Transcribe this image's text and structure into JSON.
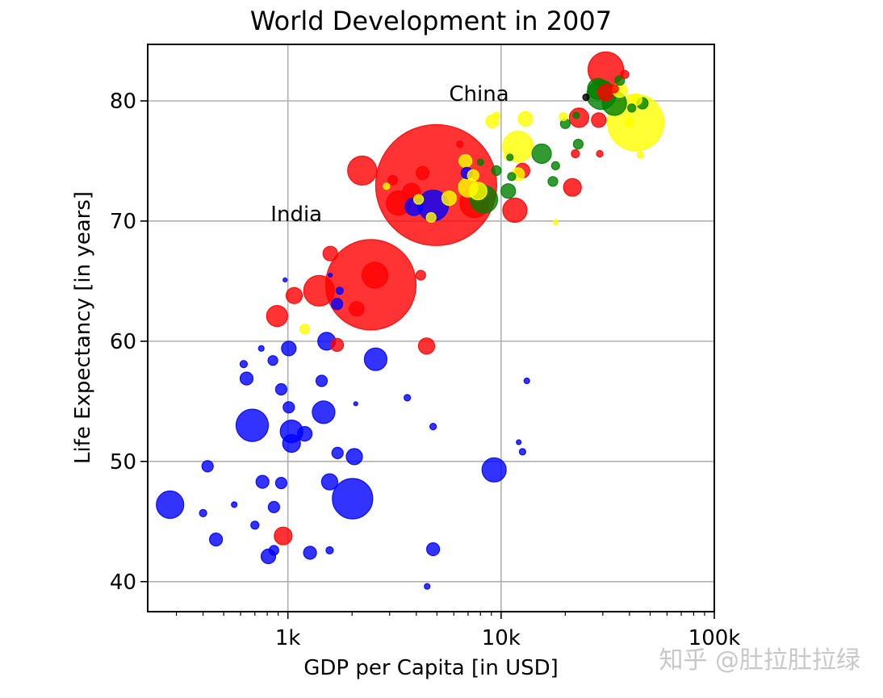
{
  "chart_data": {
    "type": "scatter",
    "title": "World Development in 2007",
    "xlabel": "GDP per Capita [in USD]",
    "ylabel": "Life Expectancy [in years]",
    "xscale": "log",
    "xlim": [
      220,
      100000
    ],
    "ylim": [
      37.5,
      84.7
    ],
    "x_ticks": [
      {
        "value": 1000,
        "label": "1k"
      },
      {
        "value": 10000,
        "label": "10k"
      },
      {
        "value": 100000,
        "label": "100k"
      }
    ],
    "y_ticks": [
      40,
      50,
      60,
      70,
      80
    ],
    "grid": true,
    "annotations": [
      {
        "text": "China",
        "x": 5700,
        "y": 80.0
      },
      {
        "text": "India",
        "x": 830,
        "y": 70.0
      }
    ],
    "colors": {
      "red": "#ff0000",
      "blue": "#0000ff",
      "green": "#008000",
      "yellow": "#ffff00",
      "black": "#000000"
    },
    "series": [
      {
        "color": "red",
        "points": [
          [
            31000,
            82.6,
            44
          ],
          [
            4960,
            73.0,
            150
          ],
          [
            2450,
            64.7,
            112
          ],
          [
            1400,
            64.2,
            38
          ],
          [
            2560,
            65.5,
            32
          ],
          [
            2230,
            74.2,
            36
          ],
          [
            3300,
            71.5,
            30
          ],
          [
            3800,
            72.4,
            22
          ],
          [
            11600,
            70.9,
            30
          ],
          [
            21600,
            72.8,
            22
          ],
          [
            23200,
            78.6,
            24
          ],
          [
            28700,
            78.4,
            18
          ],
          [
            12600,
            74.2,
            18
          ],
          [
            4280,
            74.0,
            16
          ],
          [
            2100,
            62.7,
            18
          ],
          [
            1070,
            63.8,
            20
          ],
          [
            890,
            62.1,
            26
          ],
          [
            1580,
            67.3,
            18
          ],
          [
            1700,
            59.7,
            16
          ],
          [
            4470,
            59.6,
            20
          ],
          [
            950,
            43.8,
            22
          ],
          [
            7500,
            71.5,
            36
          ],
          [
            3100,
            73.4,
            12
          ],
          [
            22300,
            75.6,
            10
          ],
          [
            29000,
            75.6,
            8
          ],
          [
            34000,
            81.0,
            10
          ],
          [
            38000,
            82.2,
            10
          ],
          [
            4200,
            65.5,
            12
          ],
          [
            6400,
            76.4,
            8
          ],
          [
            31000,
            80.7,
            20
          ]
        ]
      },
      {
        "color": "blue",
        "points": [
          [
            4800,
            71.3,
            38
          ],
          [
            3900,
            71.2,
            22
          ],
          [
            6900,
            74.0,
            14
          ],
          [
            1520,
            60.0,
            22
          ],
          [
            1010,
            59.4,
            18
          ],
          [
            2580,
            58.5,
            28
          ],
          [
            640,
            56.9,
            16
          ],
          [
            1440,
            56.7,
            14
          ],
          [
            930,
            56.0,
            14
          ],
          [
            1010,
            54.5,
            14
          ],
          [
            680,
            53.0,
            40
          ],
          [
            1040,
            52.5,
            28
          ],
          [
            1470,
            54.1,
            28
          ],
          [
            1200,
            52.3,
            18
          ],
          [
            1040,
            51.5,
            22
          ],
          [
            1710,
            50.7,
            14
          ],
          [
            2050,
            50.4,
            20
          ],
          [
            9270,
            49.3,
            30
          ],
          [
            420,
            49.6,
            14
          ],
          [
            760,
            48.3,
            16
          ],
          [
            930,
            48.2,
            14
          ],
          [
            1570,
            48.3,
            20
          ],
          [
            2010,
            46.9,
            50
          ],
          [
            280,
            46.4,
            34
          ],
          [
            860,
            46.2,
            14
          ],
          [
            400,
            45.7,
            9
          ],
          [
            700,
            44.7,
            10
          ],
          [
            460,
            43.5,
            16
          ],
          [
            810,
            42.1,
            18
          ],
          [
            860,
            42.6,
            12
          ],
          [
            1270,
            42.4,
            16
          ],
          [
            1570,
            42.6,
            9
          ],
          [
            4800,
            42.7,
            16
          ],
          [
            4500,
            39.6,
            7
          ],
          [
            1750,
            64.2,
            9
          ],
          [
            1700,
            63.1,
            14
          ],
          [
            3630,
            55.3,
            8
          ],
          [
            4800,
            52.9,
            8
          ],
          [
            12100,
            51.6,
            6
          ],
          [
            12600,
            50.8,
            8
          ],
          [
            13200,
            56.7,
            7
          ],
          [
            2080,
            54.8,
            5
          ],
          [
            560,
            46.4,
            7
          ],
          [
            970,
            65.1,
            5
          ],
          [
            620,
            58.1,
            9
          ],
          [
            750,
            59.4,
            7
          ],
          [
            850,
            58.4,
            12
          ],
          [
            1580,
            65.5,
            5
          ]
        ]
      },
      {
        "color": "green",
        "points": [
          [
            29500,
            80.5,
            36
          ],
          [
            34000,
            79.8,
            30
          ],
          [
            28500,
            81.0,
            26
          ],
          [
            8300,
            71.8,
            34
          ],
          [
            15500,
            75.6,
            24
          ],
          [
            10800,
            72.5,
            18
          ],
          [
            11200,
            73.7,
            10
          ],
          [
            20000,
            78.1,
            12
          ],
          [
            23000,
            76.4,
            12
          ],
          [
            17500,
            73.3,
            12
          ],
          [
            18000,
            74.6,
            10
          ],
          [
            36000,
            81.7,
            12
          ],
          [
            46000,
            79.8,
            14
          ],
          [
            9500,
            74.2,
            12
          ],
          [
            8000,
            74.9,
            8
          ],
          [
            11000,
            75.3,
            8
          ],
          [
            41000,
            79.4,
            10
          ],
          [
            22500,
            78.8,
            8
          ]
        ]
      },
      {
        "color": "yellow",
        "points": [
          [
            42800,
            78.2,
            70
          ],
          [
            12000,
            76.2,
            38
          ],
          [
            7000,
            72.8,
            24
          ],
          [
            6800,
            75.0,
            16
          ],
          [
            7800,
            72.5,
            22
          ],
          [
            5700,
            71.9,
            18
          ],
          [
            4100,
            71.8,
            12
          ],
          [
            9100,
            78.3,
            16
          ],
          [
            13000,
            78.5,
            18
          ],
          [
            36000,
            80.9,
            18
          ],
          [
            43000,
            80.1,
            14
          ],
          [
            12000,
            73.9,
            16
          ],
          [
            10800,
            75.4,
            10
          ],
          [
            4700,
            70.3,
            12
          ],
          [
            7400,
            73.8,
            14
          ],
          [
            1200,
            61.0,
            12
          ],
          [
            19600,
            78.7,
            10
          ],
          [
            45000,
            75.5,
            8
          ],
          [
            18000,
            69.9,
            6
          ],
          [
            2900,
            72.9,
            8
          ],
          [
            9500,
            78.8,
            8
          ],
          [
            40000,
            78.2,
            12
          ]
        ]
      },
      {
        "color": "black",
        "points": [
          [
            25000,
            80.3,
            8
          ]
        ]
      }
    ]
  },
  "watermark": "知乎 @肚拉肚拉绿"
}
